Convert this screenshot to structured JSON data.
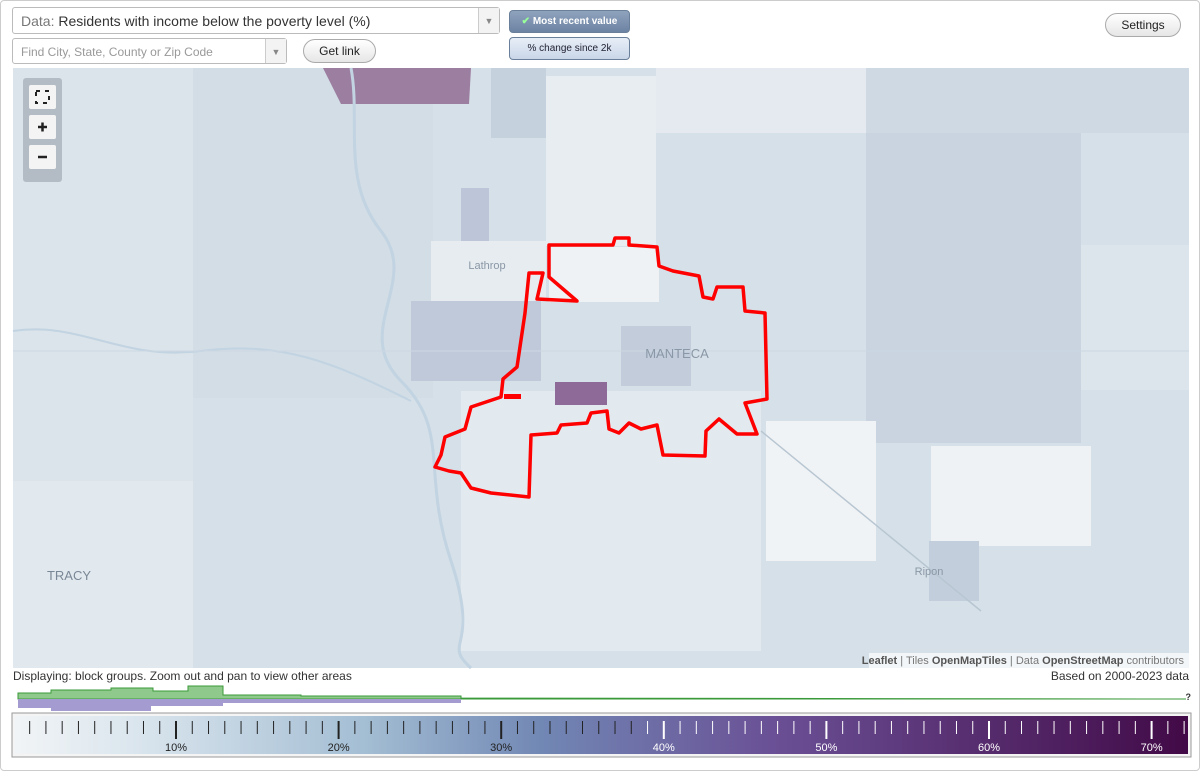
{
  "controls": {
    "data_label": "Data:",
    "data_value": "Residents with income below the poverty level (%)",
    "search_placeholder": "Find City, State, County or Zip Code",
    "get_link": "Get link",
    "most_recent": "Most recent value",
    "change_since": "% change since 2k",
    "settings": "Settings"
  },
  "map": {
    "places": [
      "Lathrop",
      "MANTECA",
      "TRACY",
      "Ripon"
    ],
    "attribution": {
      "leaflet": "Leaflet",
      "tiles_label": "Tiles",
      "tiles": "OpenMapTiles",
      "data_label": "Data",
      "data": "OpenStreetMap",
      "contributors": "contributors"
    }
  },
  "status": "Displaying: block groups. Zoom out and pan to view other areas",
  "data_range": "Based on 2000-2023 data",
  "histogram": {
    "unknown": "?"
  },
  "legend": {
    "ticks": [
      "10%",
      "20%",
      "30%",
      "40%",
      "50%",
      "60%",
      "70%"
    ]
  }
}
